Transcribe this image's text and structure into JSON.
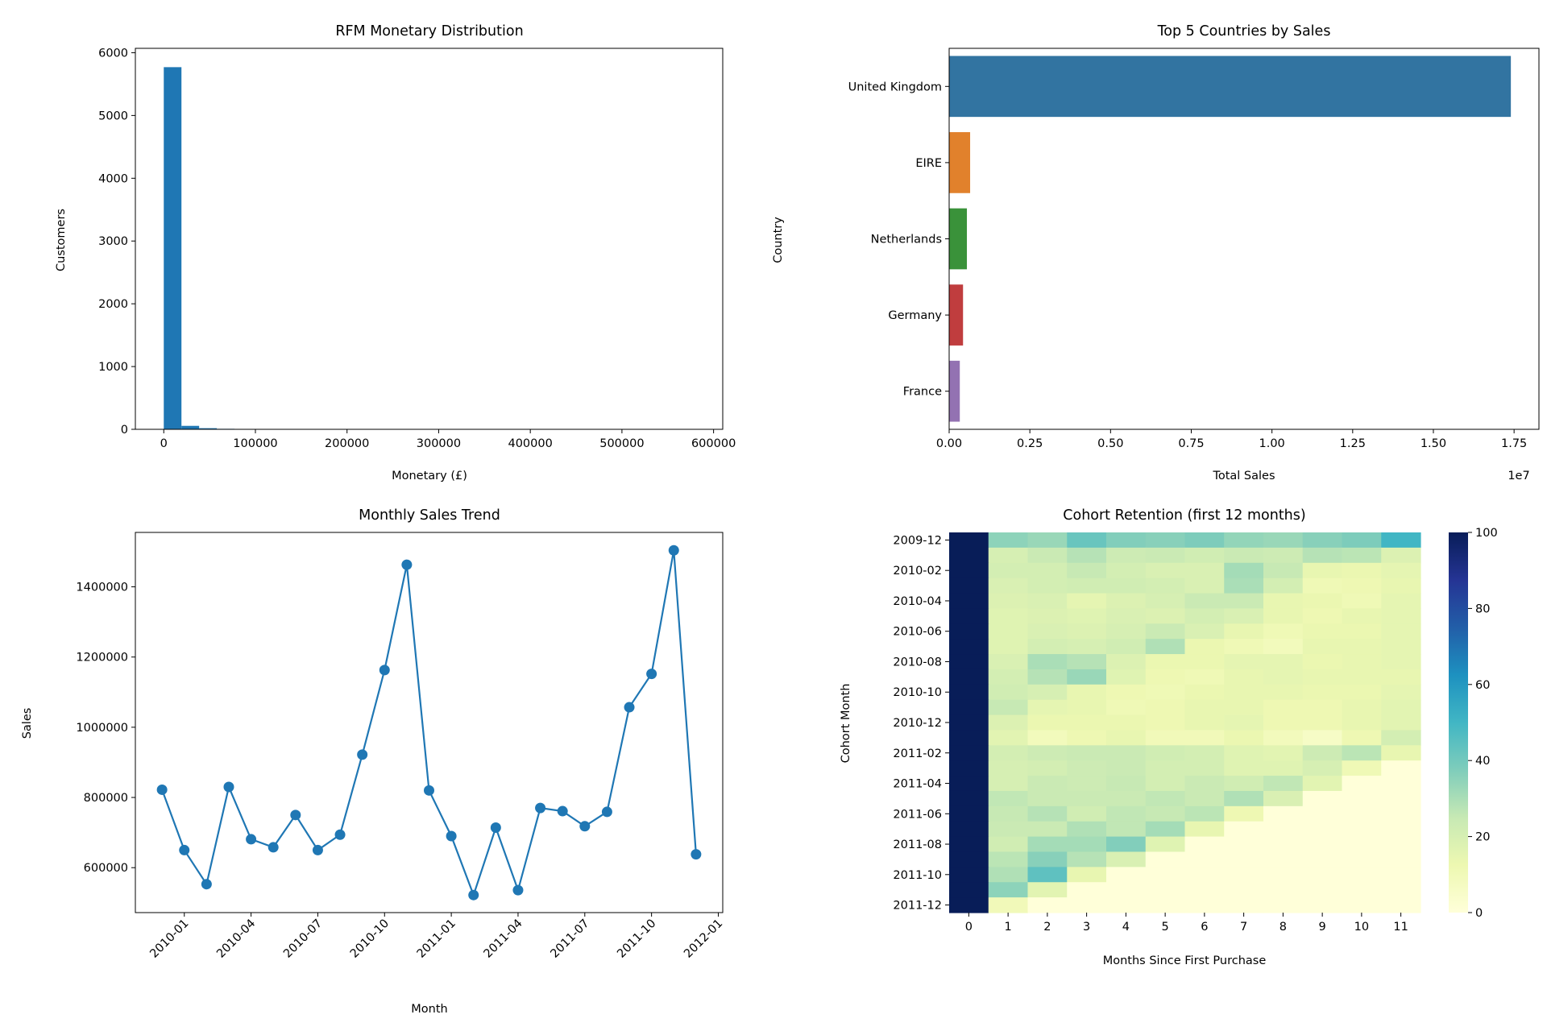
{
  "colors": {
    "hist": "#1f77b4",
    "line": "#1f77b4",
    "bars": [
      "#3274a1",
      "#e1812c",
      "#3a923a",
      "#c03d3e",
      "#9372b2"
    ]
  },
  "chart_data": [
    {
      "type": "bar",
      "subtype": "histogram",
      "title": "RFM Monetary Distribution",
      "xlabel": "Monetary (£)",
      "ylabel": "Customers",
      "xlim": [
        -31000,
        610000
      ],
      "ylim": [
        0,
        6070
      ],
      "x_ticks": [
        0,
        100000,
        200000,
        300000,
        400000,
        500000,
        600000
      ],
      "x_tick_labels": [
        "0",
        "100000",
        "200000",
        "300000",
        "400000",
        "500000",
        "600000"
      ],
      "y_ticks": [
        0,
        1000,
        2000,
        3000,
        4000,
        5000,
        6000
      ],
      "y_tick_labels": [
        "0",
        "1000",
        "2000",
        "3000",
        "4000",
        "5000",
        "6000"
      ],
      "bin_width": 19300,
      "bins_start": 0,
      "values": [
        5770,
        55,
        18,
        8,
        4,
        3,
        2,
        2,
        1,
        1,
        1,
        1,
        1,
        1,
        1,
        0,
        0,
        0,
        0,
        0,
        0,
        0,
        0,
        0,
        0,
        0,
        0,
        0,
        0,
        1
      ]
    },
    {
      "type": "bar",
      "orientation": "horizontal",
      "title": "Top 5 Countries by Sales",
      "xlabel": "Total Sales",
      "ylabel": "Country",
      "x_offset_label": "1e7",
      "categories": [
        "United Kingdom",
        "EIRE",
        "Netherlands",
        "Germany",
        "France"
      ],
      "values": [
        17400000,
        650000,
        550000,
        430000,
        330000
      ],
      "xlim": [
        0,
        18270000
      ],
      "x_ticks": [
        0,
        2500000,
        5000000,
        7500000,
        10000000,
        12500000,
        15000000,
        17500000
      ],
      "x_tick_labels": [
        "0.00",
        "0.25",
        "0.50",
        "0.75",
        "1.00",
        "1.25",
        "1.50",
        "1.75"
      ]
    },
    {
      "type": "line",
      "title": "Monthly Sales Trend",
      "xlabel": "Month",
      "ylabel": "Sales",
      "x": [
        "2009-12",
        "2010-01",
        "2010-02",
        "2010-03",
        "2010-04",
        "2010-05",
        "2010-06",
        "2010-07",
        "2010-08",
        "2010-09",
        "2010-10",
        "2010-11",
        "2010-12",
        "2011-01",
        "2011-02",
        "2011-03",
        "2011-04",
        "2011-05",
        "2011-06",
        "2011-07",
        "2011-08",
        "2011-09",
        "2011-10",
        "2011-11",
        "2011-12"
      ],
      "values": [
        822000,
        650000,
        553000,
        830000,
        681000,
        658000,
        750000,
        650000,
        694000,
        922000,
        1163000,
        1463000,
        820000,
        690000,
        522000,
        714000,
        536000,
        770000,
        761000,
        718000,
        759000,
        1057000,
        1152000,
        1504000,
        638000
      ],
      "ylim": [
        472000,
        1555000
      ],
      "y_ticks": [
        600000,
        800000,
        1000000,
        1200000,
        1400000
      ],
      "y_tick_labels": [
        "600000",
        "800000",
        "1000000",
        "1200000",
        "1400000"
      ],
      "x_ticks": [
        "2010-01",
        "2010-04",
        "2010-07",
        "2010-10",
        "2011-01",
        "2011-04",
        "2011-07",
        "2011-10",
        "2012-01"
      ],
      "x_tick_labels": [
        "2010-01",
        "2010-04",
        "2010-07",
        "2010-10",
        "2011-01",
        "2011-04",
        "2011-07",
        "2011-10",
        "2012-01"
      ]
    },
    {
      "type": "heatmap",
      "title": "Cohort Retention (first 12 months)",
      "xlabel": "Months Since First Purchase",
      "ylabel": "Cohort Month",
      "colormap": "YlGnBu",
      "vmin": 0,
      "vmax": 100,
      "colorbar_ticks": [
        0,
        20,
        40,
        60,
        80,
        100
      ],
      "colorbar_tick_labels": [
        "0",
        "20",
        "40",
        "60",
        "80",
        "100"
      ],
      "x_labels": [
        "0",
        "1",
        "2",
        "3",
        "4",
        "5",
        "6",
        "7",
        "8",
        "9",
        "10",
        "11"
      ],
      "y_tick_labels": [
        "2009-12",
        "2010-02",
        "2010-04",
        "2010-06",
        "2010-08",
        "2010-10",
        "2010-12",
        "2011-02",
        "2011-04",
        "2011-06",
        "2011-08",
        "2011-10",
        "2011-12"
      ],
      "rows": [
        "2009-12",
        "2010-01",
        "2010-02",
        "2010-03",
        "2010-04",
        "2010-05",
        "2010-06",
        "2010-07",
        "2010-08",
        "2010-09",
        "2010-10",
        "2010-11",
        "2010-12",
        "2011-01",
        "2011-02",
        "2011-03",
        "2011-04",
        "2011-05",
        "2011-06",
        "2011-07",
        "2011-08",
        "2011-09",
        "2011-10",
        "2011-11",
        "2011-12"
      ],
      "values": [
        [
          100,
          35,
          33,
          42,
          37,
          36,
          38,
          34,
          33,
          36,
          38,
          50
        ],
        [
          100,
          20,
          24,
          28,
          23,
          24,
          22,
          24,
          23,
          28,
          27,
          18
        ],
        [
          100,
          21,
          21,
          25,
          21,
          19,
          19,
          31,
          25,
          14,
          13,
          15
        ],
        [
          100,
          19,
          21,
          22,
          22,
          21,
          19,
          30,
          21,
          11,
          12,
          14
        ],
        [
          100,
          18,
          19,
          15,
          18,
          20,
          24,
          24,
          14,
          13,
          11,
          15
        ],
        [
          100,
          17,
          18,
          17,
          19,
          18,
          21,
          19,
          14,
          12,
          14,
          15
        ],
        [
          100,
          17,
          19,
          18,
          20,
          24,
          19,
          14,
          11,
          13,
          13,
          15
        ],
        [
          100,
          17,
          21,
          20,
          22,
          29,
          13,
          11,
          9,
          14,
          14,
          15
        ],
        [
          100,
          19,
          30,
          28,
          18,
          13,
          13,
          15,
          15,
          13,
          14,
          15
        ],
        [
          100,
          21,
          28,
          33,
          17,
          12,
          11,
          14,
          15,
          14,
          14,
          14
        ],
        [
          100,
          22,
          20,
          14,
          12,
          11,
          13,
          14,
          14,
          13,
          13,
          15
        ],
        [
          100,
          25,
          15,
          14,
          11,
          12,
          14,
          14,
          12,
          12,
          14,
          16
        ],
        [
          100,
          18,
          13,
          13,
          13,
          12,
          14,
          15,
          12,
          12,
          14,
          16
        ],
        [
          100,
          16,
          9,
          12,
          14,
          10,
          10,
          13,
          9,
          6,
          12,
          21
        ],
        [
          100,
          21,
          23,
          24,
          24,
          22,
          21,
          17,
          16,
          23,
          27,
          14
        ],
        [
          100,
          20,
          21,
          23,
          24,
          21,
          21,
          17,
          17,
          20,
          11,
          0
        ],
        [
          100,
          20,
          24,
          23,
          25,
          21,
          24,
          22,
          26,
          16,
          0,
          0
        ],
        [
          100,
          26,
          24,
          24,
          24,
          26,
          24,
          29,
          19,
          0,
          0,
          0
        ],
        [
          100,
          25,
          28,
          22,
          26,
          25,
          27,
          12,
          0,
          0,
          0,
          0
        ],
        [
          100,
          24,
          24,
          29,
          26,
          31,
          14,
          0,
          0,
          0,
          0,
          0
        ],
        [
          100,
          22,
          31,
          31,
          37,
          17,
          0,
          0,
          0,
          0,
          0,
          0
        ],
        [
          100,
          27,
          36,
          28,
          19,
          0,
          0,
          0,
          0,
          0,
          0,
          0
        ],
        [
          100,
          29,
          44,
          14,
          0,
          0,
          0,
          0,
          0,
          0,
          0,
          0
        ],
        [
          100,
          35,
          16,
          0,
          0,
          0,
          0,
          0,
          0,
          0,
          0,
          0
        ],
        [
          100,
          10,
          0,
          0,
          0,
          0,
          0,
          0,
          0,
          0,
          0,
          0
        ]
      ]
    }
  ]
}
